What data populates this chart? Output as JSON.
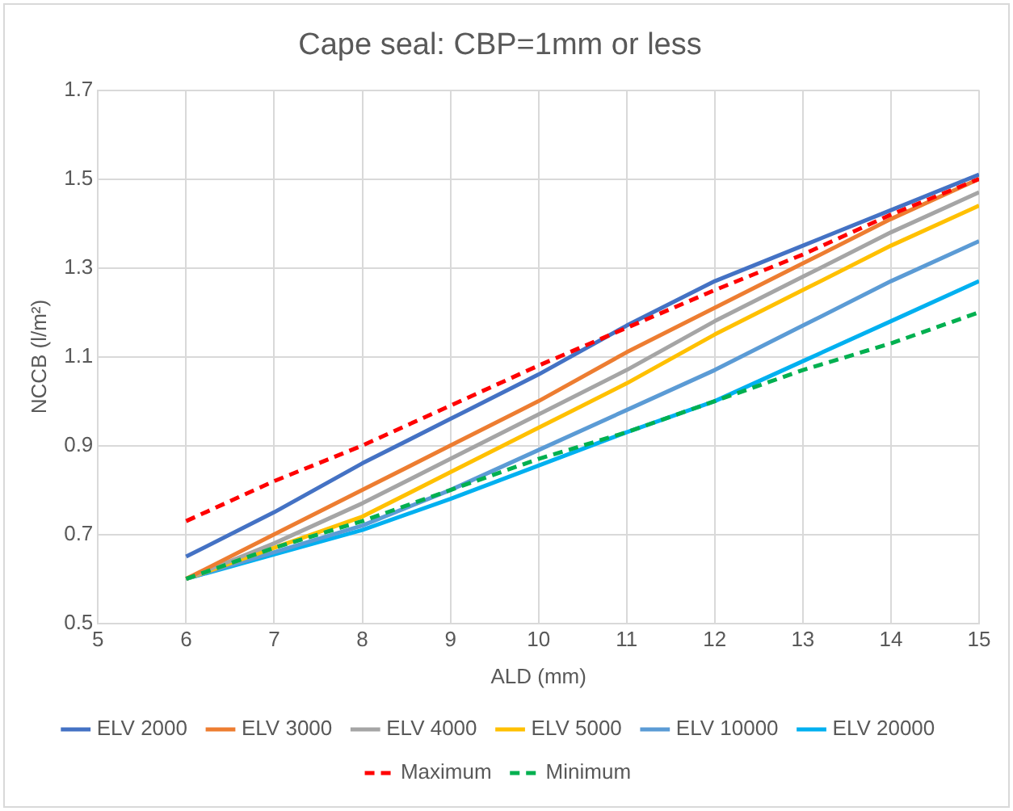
{
  "chart_data": {
    "type": "line",
    "title": "Cape seal: CBP=1mm or less",
    "xlabel": "ALD (mm)",
    "ylabel": "NCCB (l/m²)",
    "x": [
      6,
      7,
      8,
      9,
      10,
      11,
      12,
      13,
      14,
      15
    ],
    "xlim": [
      5,
      15
    ],
    "xticks": [
      5,
      6,
      7,
      8,
      9,
      10,
      11,
      12,
      13,
      14,
      15
    ],
    "ylim": [
      0.5,
      1.7
    ],
    "yticks": [
      0.5,
      0.7,
      0.9,
      1.1,
      1.3,
      1.5,
      1.7
    ],
    "grid": true,
    "legend": "bottom",
    "marker": "none",
    "series": [
      {
        "name": "ELV 2000",
        "color": "#4472c4",
        "line_style": "solid",
        "values": [
          0.65,
          0.75,
          0.86,
          0.96,
          1.06,
          1.17,
          1.27,
          1.35,
          1.43,
          1.51
        ]
      },
      {
        "name": "ELV 3000",
        "color": "#ed7d31",
        "line_style": "solid",
        "values": [
          0.6,
          0.7,
          0.8,
          0.9,
          1.0,
          1.11,
          1.21,
          1.31,
          1.41,
          1.5
        ]
      },
      {
        "name": "ELV 4000",
        "color": "#a5a5a5",
        "line_style": "solid",
        "values": [
          0.6,
          0.68,
          0.77,
          0.87,
          0.97,
          1.07,
          1.18,
          1.28,
          1.38,
          1.47
        ]
      },
      {
        "name": "ELV 5000",
        "color": "#ffc000",
        "line_style": "solid",
        "values": [
          0.6,
          0.67,
          0.74,
          0.84,
          0.94,
          1.04,
          1.15,
          1.25,
          1.35,
          1.44
        ]
      },
      {
        "name": "ELV 10000",
        "color": "#5b9bd5",
        "line_style": "solid",
        "values": [
          0.6,
          0.66,
          0.72,
          0.8,
          0.89,
          0.98,
          1.07,
          1.17,
          1.27,
          1.36
        ]
      },
      {
        "name": "ELV 20000",
        "color": "#00b0f0",
        "line_style": "solid",
        "values": [
          0.6,
          0.655,
          0.71,
          0.78,
          0.855,
          0.93,
          1.0,
          1.09,
          1.18,
          1.27
        ]
      },
      {
        "name": "Maximum",
        "color": "#ff0000",
        "line_style": "dashed",
        "values": [
          0.73,
          0.82,
          0.9,
          0.99,
          1.08,
          1.165,
          1.25,
          1.33,
          1.42,
          1.5
        ]
      },
      {
        "name": "Minimum",
        "color": "#00b050",
        "line_style": "dashed",
        "values": [
          0.6,
          0.67,
          0.73,
          0.8,
          0.87,
          0.93,
          1.0,
          1.07,
          1.13,
          1.2
        ]
      }
    ]
  }
}
